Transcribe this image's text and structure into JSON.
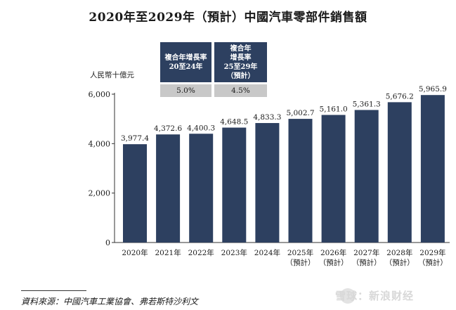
{
  "chart_data": {
    "type": "bar",
    "title": "2020年至2029年（預計）中國汽車零部件銷售額",
    "ylabel": "人民幣十億元",
    "xlabel": "",
    "ylim": [
      0,
      6000
    ],
    "yticks": [
      "0",
      "2,000",
      "4,000",
      "6,000"
    ],
    "ytick_values": [
      0,
      2000,
      4000,
      6000
    ],
    "categories": [
      "2020年",
      "2021年",
      "2022年",
      "2023年",
      "2024年",
      "2025年",
      "2026年",
      "2027年",
      "2028年",
      "2029年"
    ],
    "category_notes": [
      "",
      "",
      "",
      "",
      "",
      "（預計）",
      "（預計）",
      "（預計）",
      "（預計）",
      "（預計）"
    ],
    "values": [
      3977.4,
      4372.6,
      4400.3,
      4648.5,
      4833.3,
      5002.7,
      5161.0,
      5361.3,
      5676.2,
      5965.9
    ],
    "value_labels": [
      "3,977.4",
      "4,372.6",
      "4,400.3",
      "4,648.5",
      "4,833.3",
      "5,002.7",
      "5,161.0",
      "5,361.3",
      "5,676.2",
      "5,965.9"
    ],
    "bar_color": "#2d4060",
    "cagr": [
      {
        "header": [
          "複合年增長率",
          "20至24年"
        ],
        "value": "5.0%"
      },
      {
        "header": [
          "複合年",
          "增長率",
          "25至29年",
          "（預計）"
        ],
        "value": "4.5%"
      }
    ]
  },
  "source": "資料來源：中國汽車工業協會、弗若斯特沙利文",
  "watermark": "雪球：新浪财经"
}
